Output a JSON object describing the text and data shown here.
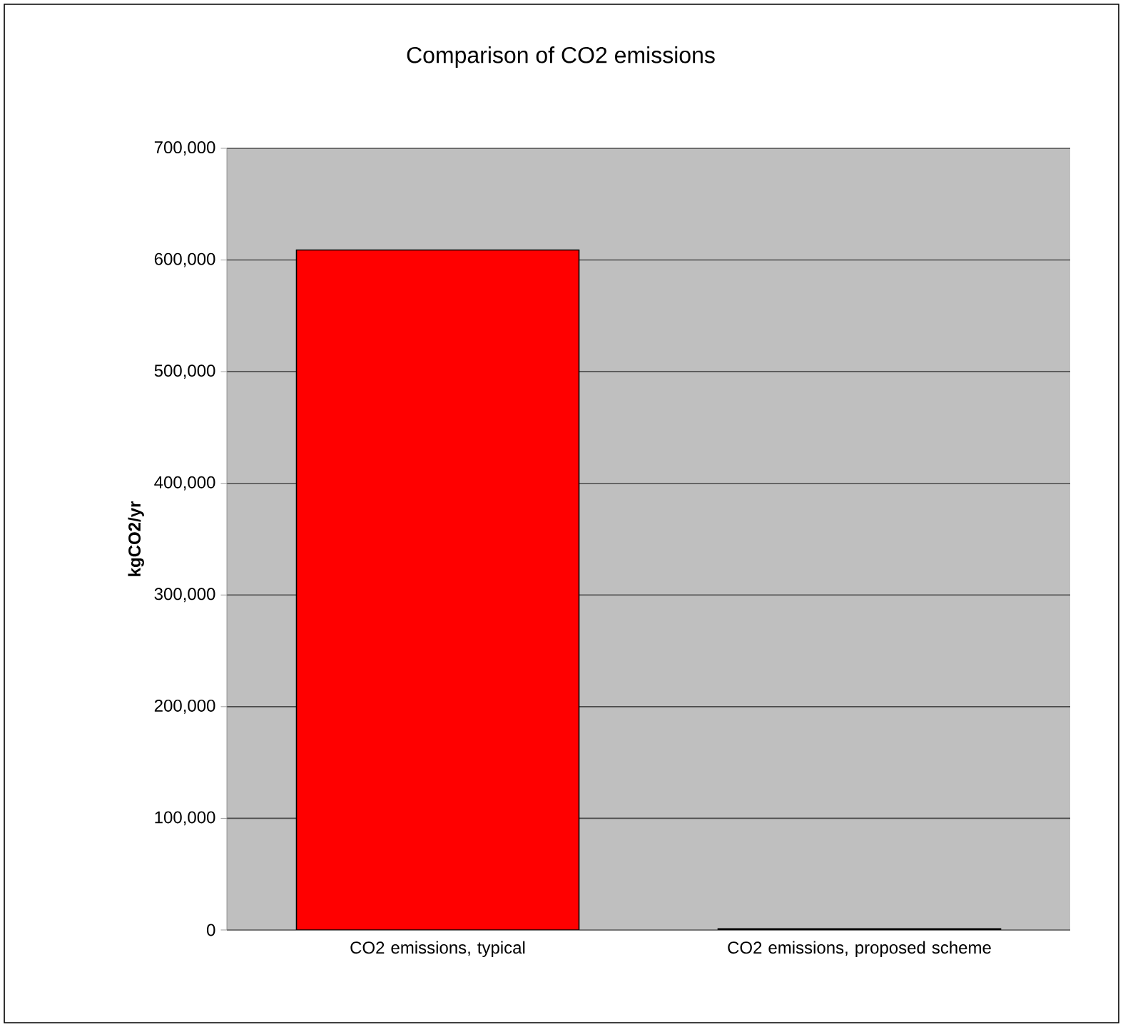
{
  "chart_data": {
    "type": "bar",
    "title": "Comparison of CO2 emissions",
    "ylabel": "kgCO2/yr",
    "categories": [
      "CO2 emissions, typical",
      "CO2 emissions, proposed scheme"
    ],
    "values": [
      609000,
      1000
    ],
    "colors": [
      "#ff0000",
      "#ff0000"
    ],
    "ylim": [
      0,
      700000
    ],
    "yticks": [
      {
        "value": 0,
        "label": "0"
      },
      {
        "value": 100000,
        "label": "100,000"
      },
      {
        "value": 200000,
        "label": "200,000"
      },
      {
        "value": 300000,
        "label": "300,000"
      },
      {
        "value": 400000,
        "label": "400,000"
      },
      {
        "value": 500000,
        "label": "500,000"
      },
      {
        "value": 600000,
        "label": "600,000"
      },
      {
        "value": 700000,
        "label": "700,000"
      }
    ],
    "grid": "y"
  }
}
